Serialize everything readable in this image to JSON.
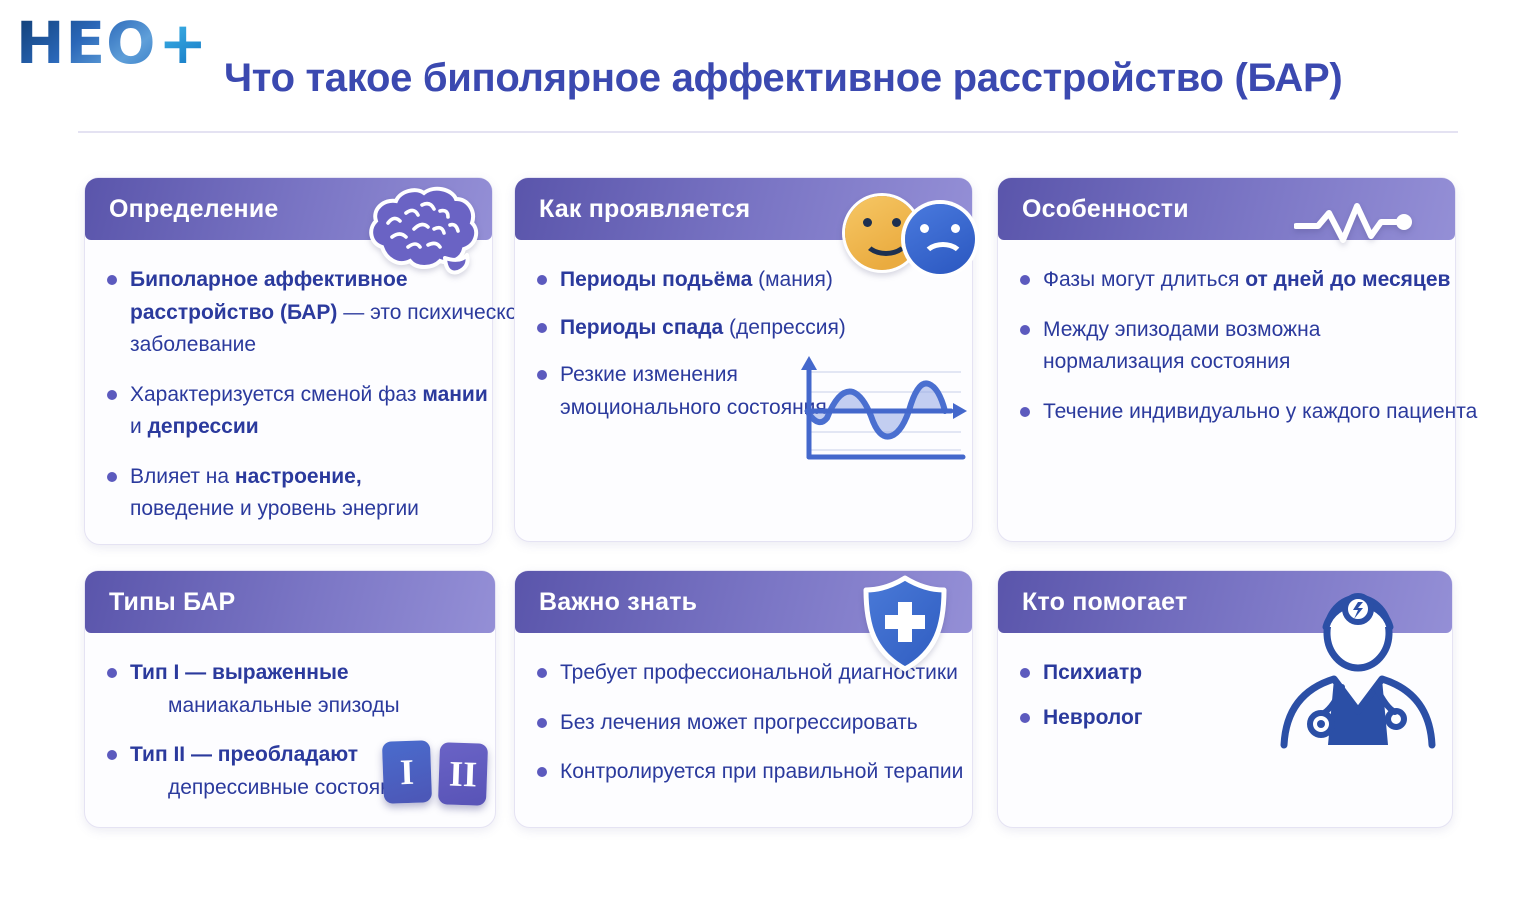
{
  "logo": {
    "text": "НЕО",
    "plus": "+"
  },
  "page": {
    "title": "Что такое биполярное аффективное расстройство (БАР)"
  },
  "colors": {
    "header_gradient_start": "#5a55ab",
    "header_gradient_end": "#948fd6",
    "title_blue": "#3b49b0",
    "body_text_blue": "#2b3a9d",
    "bullet_dot": "#5c5abe",
    "happy_face_orange": "#eeb04a",
    "sad_face_blue": "#3a6cd4",
    "shield_blue": "#3a6ad0",
    "doctor_line_blue": "#2b4fa6"
  },
  "type_tiles": {
    "tile1": "I",
    "tile2": "II"
  },
  "cards": [
    {
      "title": "Определение",
      "icon": "brain-icon",
      "bullets": [
        {
          "lines": [
            {
              "parts": [
                {
                  "t": "Биполарное аффективное",
                  "b": true
                }
              ]
            },
            {
              "parts": [
                {
                  "t": "расстройство (БАР)",
                  "b": true
                },
                {
                  "t": " — это психическое",
                  "b": false
                }
              ]
            },
            {
              "parts": [
                {
                  "t": "заболевание",
                  "b": false
                }
              ]
            }
          ]
        },
        {
          "lines": [
            {
              "parts": [
                {
                  "t": "Характеризуется сменой фаз ",
                  "b": false
                },
                {
                  "t": "мании",
                  "b": true
                }
              ]
            },
            {
              "parts": [
                {
                  "t": "и ",
                  "b": false
                },
                {
                  "t": "депрессии",
                  "b": true
                }
              ]
            }
          ]
        },
        {
          "lines": [
            {
              "parts": [
                {
                  "t": "Влияет на ",
                  "b": false
                },
                {
                  "t": "настроение,",
                  "b": true
                }
              ]
            },
            {
              "parts": [
                {
                  "t": "поведение и уровень энергии",
                  "b": false
                }
              ]
            }
          ]
        }
      ]
    },
    {
      "title": "Как проявляется",
      "icon": "mood-faces-icon",
      "bullets": [
        {
          "lines": [
            {
              "parts": [
                {
                  "t": "Периоды подьёма",
                  "b": true
                },
                {
                  "t": " (мания)",
                  "b": false
                }
              ]
            }
          ]
        },
        {
          "lines": [
            {
              "parts": [
                {
                  "t": "Периоды спада",
                  "b": true
                },
                {
                  "t": " (депрессия)",
                  "b": false
                }
              ]
            }
          ]
        },
        {
          "lines": [
            {
              "parts": [
                {
                  "t": "Резкие изменения",
                  "b": false
                }
              ]
            },
            {
              "parts": [
                {
                  "t": "эмоционального состояния",
                  "b": false
                }
              ]
            }
          ]
        }
      ]
    },
    {
      "title": "Особенности",
      "icon": "pulse-icon",
      "bullets": [
        {
          "lines": [
            {
              "parts": [
                {
                  "t": "Фазы могут длиться ",
                  "b": false
                },
                {
                  "t": "от дней до месяцев",
                  "b": true
                }
              ]
            }
          ]
        },
        {
          "lines": [
            {
              "parts": [
                {
                  "t": "Между эпизодами возможна",
                  "b": false
                }
              ]
            },
            {
              "parts": [
                {
                  "t": "нормализация состояния",
                  "b": false
                }
              ]
            }
          ]
        },
        {
          "lines": [
            {
              "parts": [
                {
                  "t": "Течение индивидуально у каждого пациента",
                  "b": false
                }
              ]
            }
          ]
        }
      ]
    },
    {
      "title": "Типы БАР",
      "icon": "type-tiles-icon",
      "bullets": [
        {
          "lines": [
            {
              "parts": [
                {
                  "t": "Тип I — выраженные",
                  "b": true
                }
              ]
            },
            {
              "indent": true,
              "parts": [
                {
                  "t": "маниакальные эпизоды",
                  "b": false
                }
              ]
            }
          ]
        },
        {
          "lines": [
            {
              "parts": [
                {
                  "t": "Тип II — преобладают",
                  "b": true
                }
              ]
            },
            {
              "indent": true,
              "parts": [
                {
                  "t": "депрессивные состояния",
                  "b": false
                }
              ]
            }
          ]
        }
      ]
    },
    {
      "title": "Важно знать",
      "icon": "shield-cross-icon",
      "bullets": [
        {
          "lines": [
            {
              "parts": [
                {
                  "t": "Требует профессиональной диагностики",
                  "b": false
                }
              ]
            }
          ]
        },
        {
          "lines": [
            {
              "parts": [
                {
                  "t": "Без лечения может прогрессировать",
                  "b": false
                }
              ]
            }
          ]
        },
        {
          "lines": [
            {
              "parts": [
                {
                  "t": "Контролируется при правильной терапии",
                  "b": false
                }
              ]
            }
          ]
        }
      ]
    },
    {
      "title": "Кто помогает",
      "icon": "doctor-icon",
      "bullets": [
        {
          "lines": [
            {
              "parts": [
                {
                  "t": "Психиатр",
                  "b": true
                }
              ]
            }
          ]
        },
        {
          "lines": [
            {
              "parts": [
                {
                  "t": "Невролог",
                  "b": true
                }
              ]
            }
          ]
        }
      ]
    }
  ]
}
